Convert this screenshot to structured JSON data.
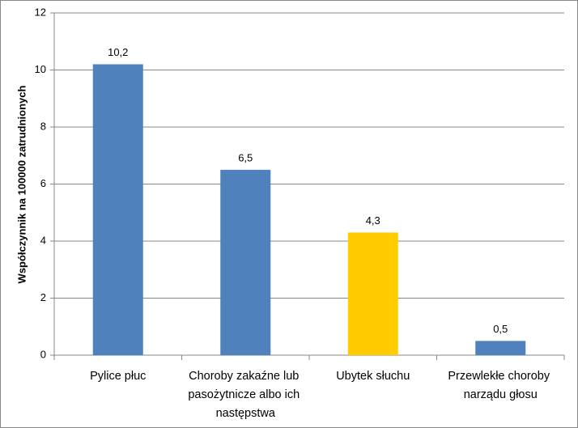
{
  "chart_data": {
    "type": "bar",
    "y_label": "Współczynnik na 100000 zatrudnionych",
    "categories": [
      "Pylice płuc",
      "Choroby zakaźne lub pasożytnicze albo ich następstwa",
      "Ubytek słuchu",
      "Przewlekłe choroby narządu głosu"
    ],
    "values": [
      10.2,
      6.5,
      4.3,
      0.5
    ],
    "value_labels": [
      "10,2",
      "6,5",
      "4,3",
      "0,5"
    ],
    "colors": [
      "#4f81bd",
      "#4f81bd",
      "#ffcc00",
      "#4f81bd"
    ],
    "ylim": [
      0,
      12
    ],
    "yticks": [
      0,
      2,
      4,
      6,
      8,
      10,
      12
    ],
    "grid": true
  }
}
